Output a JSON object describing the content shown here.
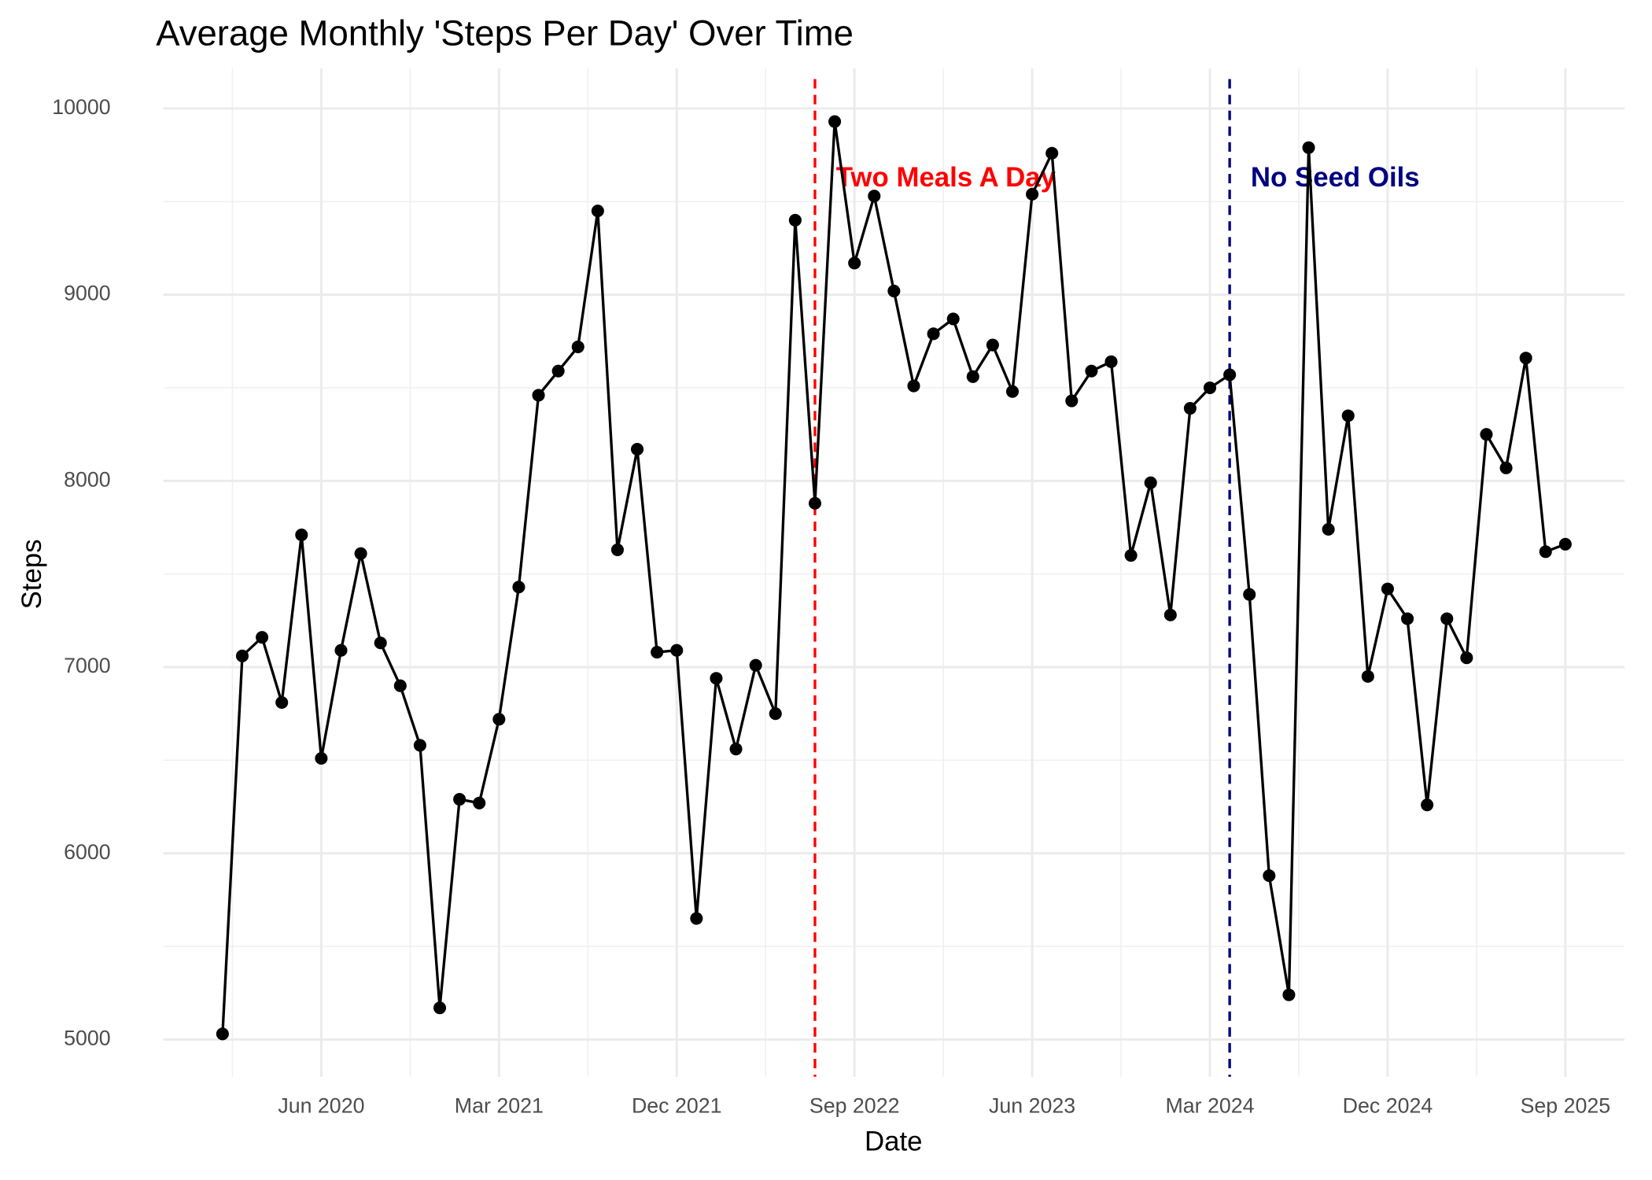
{
  "chart_data": {
    "type": "line",
    "title": "Average Monthly 'Steps Per Day' Over Time",
    "x_label": "Date",
    "y_label": "Steps",
    "x": [
      "2020-01",
      "2020-02",
      "2020-03",
      "2020-04",
      "2020-05",
      "2020-06",
      "2020-07",
      "2020-08",
      "2020-09",
      "2020-10",
      "2020-11",
      "2020-12",
      "2021-01",
      "2021-02",
      "2021-03",
      "2021-04",
      "2021-05",
      "2021-06",
      "2021-07",
      "2021-08",
      "2021-09",
      "2021-10",
      "2021-11",
      "2021-12",
      "2022-01",
      "2022-02",
      "2022-03",
      "2022-04",
      "2022-05",
      "2022-06",
      "2022-07",
      "2022-08",
      "2022-09",
      "2022-10",
      "2022-11",
      "2022-12",
      "2023-01",
      "2023-02",
      "2023-03",
      "2023-04",
      "2023-05",
      "2023-06",
      "2023-07",
      "2023-08",
      "2023-09",
      "2023-10",
      "2023-11",
      "2023-12",
      "2024-01",
      "2024-02",
      "2024-03",
      "2024-04",
      "2024-05",
      "2024-06",
      "2024-07",
      "2024-08",
      "2024-09",
      "2024-10",
      "2024-11",
      "2024-12",
      "2025-01",
      "2025-02",
      "2025-03",
      "2025-04",
      "2025-05",
      "2025-06",
      "2025-07",
      "2025-08",
      "2025-09"
    ],
    "series": [
      {
        "name": "Steps",
        "color": "#000000",
        "values": [
          5030,
          7060,
          7160,
          6810,
          7710,
          6510,
          7090,
          7610,
          7130,
          6900,
          6580,
          5170,
          6290,
          6270,
          6720,
          7430,
          8460,
          8590,
          8720,
          9450,
          7630,
          8170,
          7080,
          7090,
          5650,
          6940,
          6560,
          7010,
          6750,
          9400,
          7880,
          9930,
          9170,
          9530,
          9020,
          8510,
          8790,
          8870,
          8560,
          8730,
          8480,
          9540,
          9760,
          8430,
          8590,
          8640,
          7600,
          7990,
          7280,
          8390,
          8500,
          8570,
          7390,
          5880,
          5240,
          9790,
          7740,
          8350,
          6950,
          7420,
          7260,
          6260,
          7260,
          7050,
          8250,
          8070,
          8660,
          7620,
          7660
        ]
      }
    ],
    "xlim": [
      "2019-10",
      "2025-12"
    ],
    "xticks": [
      {
        "value": "2020-06",
        "label": "Jun 2020"
      },
      {
        "value": "2021-03",
        "label": "Mar 2021"
      },
      {
        "value": "2021-12",
        "label": "Dec 2021"
      },
      {
        "value": "2022-09",
        "label": "Sep 2022"
      },
      {
        "value": "2023-06",
        "label": "Jun 2023"
      },
      {
        "value": "2024-03",
        "label": "Mar 2024"
      },
      {
        "value": "2024-12",
        "label": "Dec 2024"
      },
      {
        "value": "2025-09",
        "label": "Sep 2025"
      }
    ],
    "ylim": [
      4800,
      10215
    ],
    "yticks": [
      5000,
      6000,
      7000,
      8000,
      9000,
      10000
    ],
    "grid": true,
    "vlines": [
      {
        "x": "2022-07",
        "color": "#ff0000",
        "label": "Two Meals A Day"
      },
      {
        "x": "2024-04",
        "color": "#000080",
        "label": "No Seed Oils"
      }
    ]
  }
}
